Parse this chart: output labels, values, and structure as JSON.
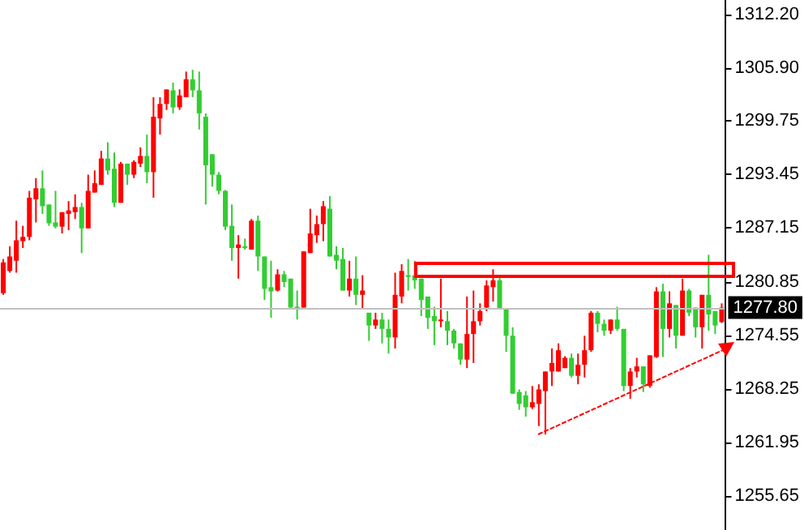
{
  "chart_data": {
    "type": "candlestick",
    "categories": [
      null,
      null,
      null,
      null,
      null,
      null,
      null,
      null,
      null,
      null,
      null,
      null,
      null,
      null,
      null,
      null,
      null,
      null,
      null,
      null,
      null,
      null,
      null,
      null,
      null,
      null,
      null,
      null,
      null,
      null,
      null,
      null,
      null,
      null,
      null,
      null,
      null,
      null,
      null,
      null,
      null,
      null,
      null,
      null,
      null,
      null,
      null,
      null,
      null,
      null,
      null,
      null,
      null,
      null,
      null,
      null,
      null,
      null,
      null,
      null,
      null,
      null,
      null,
      null,
      null,
      null,
      null,
      null,
      null,
      null,
      null,
      null,
      null,
      null,
      null,
      null,
      null,
      null,
      null,
      null,
      null,
      null,
      null,
      null,
      null,
      null,
      null,
      null,
      null,
      null,
      null,
      null,
      null,
      null,
      null,
      null,
      null,
      null,
      null,
      null,
      null,
      null,
      null,
      null,
      null,
      null,
      null,
      null,
      null,
      null,
      null
    ],
    "ohlc": [
      [
        1279.5,
        1283.5,
        1279.3,
        1283.1
      ],
      [
        1282.1,
        1285.0,
        1281.9,
        1283.8
      ],
      [
        1283.3,
        1288.0,
        1281.9,
        1285.7
      ],
      [
        1285.6,
        1287.4,
        1284.8,
        1286.1
      ],
      [
        1286.1,
        1291.5,
        1285.7,
        1290.7
      ],
      [
        1290.5,
        1293.0,
        1287.8,
        1291.8
      ],
      [
        1291.8,
        1293.9,
        1288.8,
        1289.7
      ],
      [
        1289.9,
        1289.9,
        1287.4,
        1287.7
      ],
      [
        1287.8,
        1291.5,
        1287.1,
        1287.3
      ],
      [
        1287.3,
        1289.0,
        1286.5,
        1289.0
      ],
      [
        1288.8,
        1290.3,
        1286.9,
        1289.2
      ],
      [
        1289.0,
        1291.1,
        1288.2,
        1289.6
      ],
      [
        1289.6,
        1290.1,
        1284.2,
        1287.1
      ],
      [
        1287.1,
        1293.4,
        1287.1,
        1291.5
      ],
      [
        1291.3,
        1293.9,
        1291.3,
        1292.4
      ],
      [
        1292.2,
        1296.2,
        1292.2,
        1295.3
      ],
      [
        1295.3,
        1297.2,
        1293.4,
        1293.9
      ],
      [
        1294.1,
        1296.0,
        1289.6,
        1290.1
      ],
      [
        1290.1,
        1294.9,
        1290.1,
        1294.7
      ],
      [
        1294.7,
        1294.7,
        1292.2,
        1293.4
      ],
      [
        1293.4,
        1295.1,
        1293.0,
        1294.9
      ],
      [
        1294.7,
        1296.6,
        1294.3,
        1295.6
      ],
      [
        1295.6,
        1298.1,
        1292.4,
        1293.7
      ],
      [
        1293.7,
        1302.5,
        1290.7,
        1300.2
      ],
      [
        1300.0,
        1302.5,
        1298.1,
        1301.7
      ],
      [
        1301.7,
        1303.4,
        1301.0,
        1303.4
      ],
      [
        1303.3,
        1304.2,
        1300.6,
        1301.3
      ],
      [
        1301.3,
        1303.4,
        1301.0,
        1302.7
      ],
      [
        1302.5,
        1305.5,
        1302.5,
        1304.6
      ],
      [
        1304.6,
        1305.7,
        1302.5,
        1303.3
      ],
      [
        1303.3,
        1305.5,
        1298.7,
        1300.6
      ],
      [
        1300.2,
        1300.6,
        1289.9,
        1294.5
      ],
      [
        1295.8,
        1295.8,
        1292.0,
        1293.4
      ],
      [
        1293.4,
        1293.7,
        1291.1,
        1291.5
      ],
      [
        1291.5,
        1291.6,
        1286.9,
        1287.3
      ],
      [
        1287.4,
        1289.9,
        1283.3,
        1284.8
      ],
      [
        1284.8,
        1286.3,
        1281.2,
        1285.2
      ],
      [
        1285.0,
        1285.9,
        1284.6,
        1284.8
      ],
      [
        1284.6,
        1288.2,
        1284.6,
        1288.0
      ],
      [
        1288.0,
        1288.6,
        1282.1,
        1283.8
      ],
      [
        1283.8,
        1283.8,
        1278.7,
        1280.0
      ],
      [
        1280.2,
        1283.3,
        1276.6,
        1279.7
      ],
      [
        1279.8,
        1282.3,
        1279.7,
        1281.7
      ],
      [
        1281.7,
        1282.1,
        1280.2,
        1280.8
      ],
      [
        1281.2,
        1281.2,
        1277.8,
        1277.8
      ],
      [
        1277.9,
        1279.8,
        1276.4,
        1277.8
      ],
      [
        1277.8,
        1284.4,
        1277.8,
        1284.4
      ],
      [
        1284.2,
        1289.4,
        1284.2,
        1286.5
      ],
      [
        1286.3,
        1288.6,
        1285.4,
        1287.6
      ],
      [
        1287.6,
        1290.3,
        1285.6,
        1289.7
      ],
      [
        1289.4,
        1290.9,
        1283.8,
        1283.8
      ],
      [
        1284.0,
        1285.0,
        1282.3,
        1283.3
      ],
      [
        1283.5,
        1284.8,
        1279.8,
        1279.8
      ],
      [
        1279.8,
        1283.3,
        1279.1,
        1281.2
      ],
      [
        1281.2,
        1283.8,
        1278.1,
        1279.3
      ],
      [
        1279.3,
        1281.6,
        1277.6,
        1279.8
      ],
      [
        1277.2,
        1277.2,
        1273.9,
        1275.7
      ],
      [
        1275.7,
        1277.2,
        1275.3,
        1276.4
      ],
      [
        1276.4,
        1277.2,
        1273.6,
        1275.3
      ],
      [
        1275.3,
        1276.4,
        1272.4,
        1274.3
      ],
      [
        1274.3,
        1281.9,
        1273.0,
        1279.3
      ],
      [
        1279.1,
        1282.9,
        1278.3,
        1282.1
      ],
      [
        1281.6,
        1283.5,
        1279.8,
        1281.4
      ],
      [
        1281.6,
        1283.3,
        1280.0,
        1281.0
      ],
      [
        1281.2,
        1281.2,
        1276.8,
        1278.7
      ],
      [
        1279.1,
        1279.1,
        1275.3,
        1276.6
      ],
      [
        1276.8,
        1277.9,
        1273.4,
        1276.2
      ],
      [
        1276.2,
        1281.2,
        1275.5,
        1276.4
      ],
      [
        1276.2,
        1277.4,
        1273.4,
        1275.1
      ],
      [
        1275.1,
        1275.3,
        1273.0,
        1273.6
      ],
      [
        1273.6,
        1273.6,
        1271.1,
        1271.7
      ],
      [
        1271.7,
        1279.1,
        1270.7,
        1274.7
      ],
      [
        1274.7,
        1279.8,
        1271.3,
        1276.2
      ],
      [
        1276.2,
        1278.3,
        1275.7,
        1277.4
      ],
      [
        1277.8,
        1281.0,
        1277.4,
        1280.4
      ],
      [
        1280.2,
        1282.3,
        1278.5,
        1281.0
      ],
      [
        1281.0,
        1281.6,
        1277.6,
        1277.6
      ],
      [
        1277.6,
        1277.6,
        1272.6,
        1274.5
      ],
      [
        1274.5,
        1275.5,
        1267.7,
        1267.7
      ],
      [
        1267.9,
        1268.2,
        1265.8,
        1266.5
      ],
      [
        1267.5,
        1268.0,
        1265.0,
        1266.1
      ],
      [
        1266.1,
        1268.6,
        1265.9,
        1266.7
      ],
      [
        1266.5,
        1268.8,
        1263.9,
        1268.2
      ],
      [
        1268.0,
        1270.3,
        1262.9,
        1270.3
      ],
      [
        1270.3,
        1273.0,
        1268.6,
        1271.3
      ],
      [
        1270.3,
        1273.6,
        1270.3,
        1272.8
      ],
      [
        1270.7,
        1272.1,
        1270.7,
        1271.9
      ],
      [
        1271.9,
        1272.4,
        1269.6,
        1269.8
      ],
      [
        1269.8,
        1272.4,
        1268.8,
        1271.1
      ],
      [
        1271.1,
        1274.5,
        1269.6,
        1272.8
      ],
      [
        1272.8,
        1277.4,
        1272.6,
        1277.2
      ],
      [
        1277.2,
        1277.4,
        1274.9,
        1275.9
      ],
      [
        1275.9,
        1276.4,
        1274.5,
        1275.1
      ],
      [
        1275.1,
        1276.4,
        1274.7,
        1276.4
      ],
      [
        1276.4,
        1277.9,
        1275.1,
        1275.3
      ],
      [
        1275.3,
        1275.3,
        1268.0,
        1268.6
      ],
      [
        1268.6,
        1270.7,
        1267.1,
        1270.3
      ],
      [
        1270.3,
        1271.9,
        1269.6,
        1270.9
      ],
      [
        1270.9,
        1270.9,
        1267.9,
        1268.8
      ],
      [
        1268.6,
        1272.2,
        1268.4,
        1272.2
      ],
      [
        1272.0,
        1280.2,
        1271.9,
        1279.7
      ],
      [
        1279.7,
        1280.6,
        1272.0,
        1275.3
      ],
      [
        1275.3,
        1279.7,
        1274.3,
        1278.3
      ],
      [
        1278.1,
        1278.1,
        1273.0,
        1274.5
      ],
      [
        1274.5,
        1281.2,
        1274.5,
        1279.8
      ],
      [
        1279.8,
        1280.0,
        1276.8,
        1277.2
      ],
      [
        1277.8,
        1277.8,
        1274.3,
        1275.5
      ],
      [
        1275.5,
        1279.3,
        1273.0,
        1279.3
      ],
      [
        1279.3,
        1284.0,
        1275.1,
        1277.0
      ],
      [
        1277.4,
        1277.4,
        1274.7,
        1275.7
      ],
      [
        1276.1,
        1278.3,
        1276.0,
        1277.8
      ]
    ],
    "colors": [
      "#ff0000",
      "#ff0000",
      "#ff0000",
      "#ff0000",
      "#ff0000",
      "#ff0000",
      "#32cd32",
      "#32cd32",
      "#32cd32",
      "#ff0000",
      "#ff0000",
      "#ff0000",
      "#32cd32",
      "#ff0000",
      "#ff0000",
      "#ff0000",
      "#32cd32",
      "#32cd32",
      "#ff0000",
      "#32cd32",
      "#ff0000",
      "#ff0000",
      "#32cd32",
      "#ff0000",
      "#ff0000",
      "#ff0000",
      "#32cd32",
      "#ff0000",
      "#ff0000",
      "#32cd32",
      "#32cd32",
      "#32cd32",
      "#32cd32",
      "#32cd32",
      "#32cd32",
      "#32cd32",
      "#ff0000",
      "#32cd32",
      "#ff0000",
      "#32cd32",
      "#32cd32",
      "#32cd32",
      "#ff0000",
      "#32cd32",
      "#32cd32",
      "#32cd32",
      "#ff0000",
      "#ff0000",
      "#ff0000",
      "#ff0000",
      "#32cd32",
      "#32cd32",
      "#32cd32",
      "#ff0000",
      "#32cd32",
      "#ff0000",
      "#32cd32",
      "#ff0000",
      "#32cd32",
      "#32cd32",
      "#ff0000",
      "#ff0000",
      "#32cd32",
      "#32cd32",
      "#32cd32",
      "#32cd32",
      "#32cd32",
      "#ff0000",
      "#32cd32",
      "#32cd32",
      "#32cd32",
      "#ff0000",
      "#ff0000",
      "#ff0000",
      "#ff0000",
      "#ff0000",
      "#32cd32",
      "#32cd32",
      "#32cd32",
      "#32cd32",
      "#32cd32",
      "#ff0000",
      "#ff0000",
      "#ff0000",
      "#ff0000",
      "#ff0000",
      "#ff0000",
      "#32cd32",
      "#ff0000",
      "#ff0000",
      "#ff0000",
      "#32cd32",
      "#32cd32",
      "#ff0000",
      "#32cd32",
      "#32cd32",
      "#ff0000",
      "#ff0000",
      "#32cd32",
      "#ff0000",
      "#ff0000",
      "#32cd32",
      "#ff0000",
      "#32cd32",
      "#ff0000",
      "#32cd32",
      "#32cd32",
      "#ff0000",
      "#32cd32",
      "#32cd32",
      "#ff0000"
    ],
    "ylim": [
      1251.7,
      1313.9
    ],
    "yticks": [
      {
        "value": 1312.2,
        "label": "1312.20"
      },
      {
        "value": 1305.9,
        "label": "1305.90"
      },
      {
        "value": 1299.75,
        "label": "1299.75"
      },
      {
        "value": 1293.45,
        "label": "1293.45"
      },
      {
        "value": 1287.15,
        "label": "1287.15"
      },
      {
        "value": 1280.85,
        "label": "1280.85"
      },
      {
        "value": 1274.55,
        "label": "1274.55"
      },
      {
        "value": 1268.25,
        "label": "1268.25"
      },
      {
        "value": 1261.95,
        "label": "1261.95"
      },
      {
        "value": 1255.65,
        "label": "1255.65"
      }
    ],
    "ref_lines": [
      {
        "axis": "y",
        "value": 1277.8,
        "label": "1277.80",
        "color": "#c0c0c0"
      }
    ],
    "tick_labels": "y",
    "grid": false
  }
}
